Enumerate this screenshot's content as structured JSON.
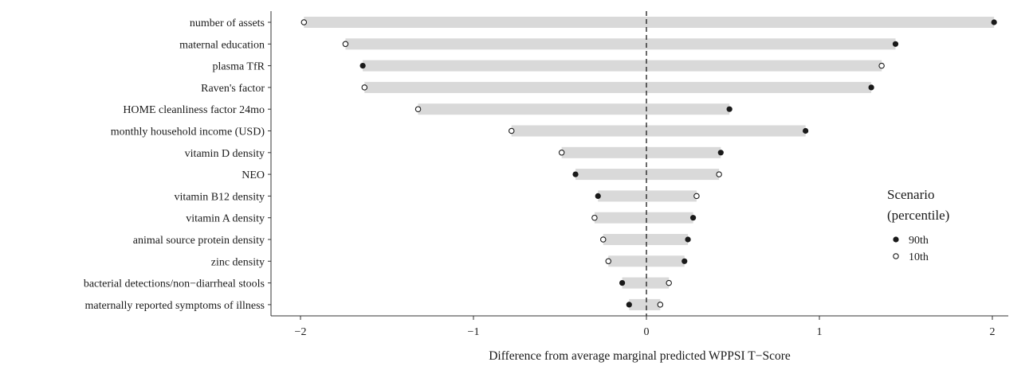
{
  "chart_data": {
    "type": "dumbbell",
    "xlabel": "Difference from average marginal predicted WPPSI T−Score",
    "ylabel": "",
    "xlim": [
      -2.2,
      2.2
    ],
    "xticks": [
      {
        "value": -2,
        "label": "−2"
      },
      {
        "value": -1,
        "label": "−1"
      },
      {
        "value": 0,
        "label": "0"
      },
      {
        "value": 1,
        "label": "1"
      },
      {
        "value": 2,
        "label": "2"
      }
    ],
    "reference_line": 0,
    "legend": {
      "title_line1": "Scenario",
      "title_line2": "(percentile)",
      "placement": "right",
      "entries": [
        {
          "label": "90th",
          "style": "filled"
        },
        {
          "label": "10th",
          "style": "open"
        }
      ]
    },
    "categories": [
      "number of assets",
      "maternal education",
      "plasma TfR",
      "Raven's factor",
      "HOME cleanliness factor 24mo",
      "monthly household income (USD)",
      "vitamin D density",
      "NEO",
      "vitamin B12 density",
      "vitamin A density",
      "animal source protein density",
      "zinc density",
      "bacterial detections/non−diarrheal stools",
      "maternally reported symptoms of illness"
    ],
    "series": [
      {
        "name": "90th",
        "values": [
          2.01,
          1.44,
          -1.64,
          1.3,
          0.48,
          0.92,
          0.43,
          -0.41,
          -0.28,
          0.27,
          0.24,
          0.22,
          -0.14,
          -0.1
        ]
      },
      {
        "name": "10th",
        "values": [
          -1.98,
          -1.74,
          1.36,
          -1.63,
          -1.32,
          -0.78,
          -0.49,
          0.42,
          0.29,
          -0.3,
          -0.25,
          -0.22,
          0.13,
          0.08
        ]
      }
    ],
    "colors": {
      "bar": "#d9d9d9",
      "point": "#1a1a1a",
      "axis": "#333333"
    }
  }
}
